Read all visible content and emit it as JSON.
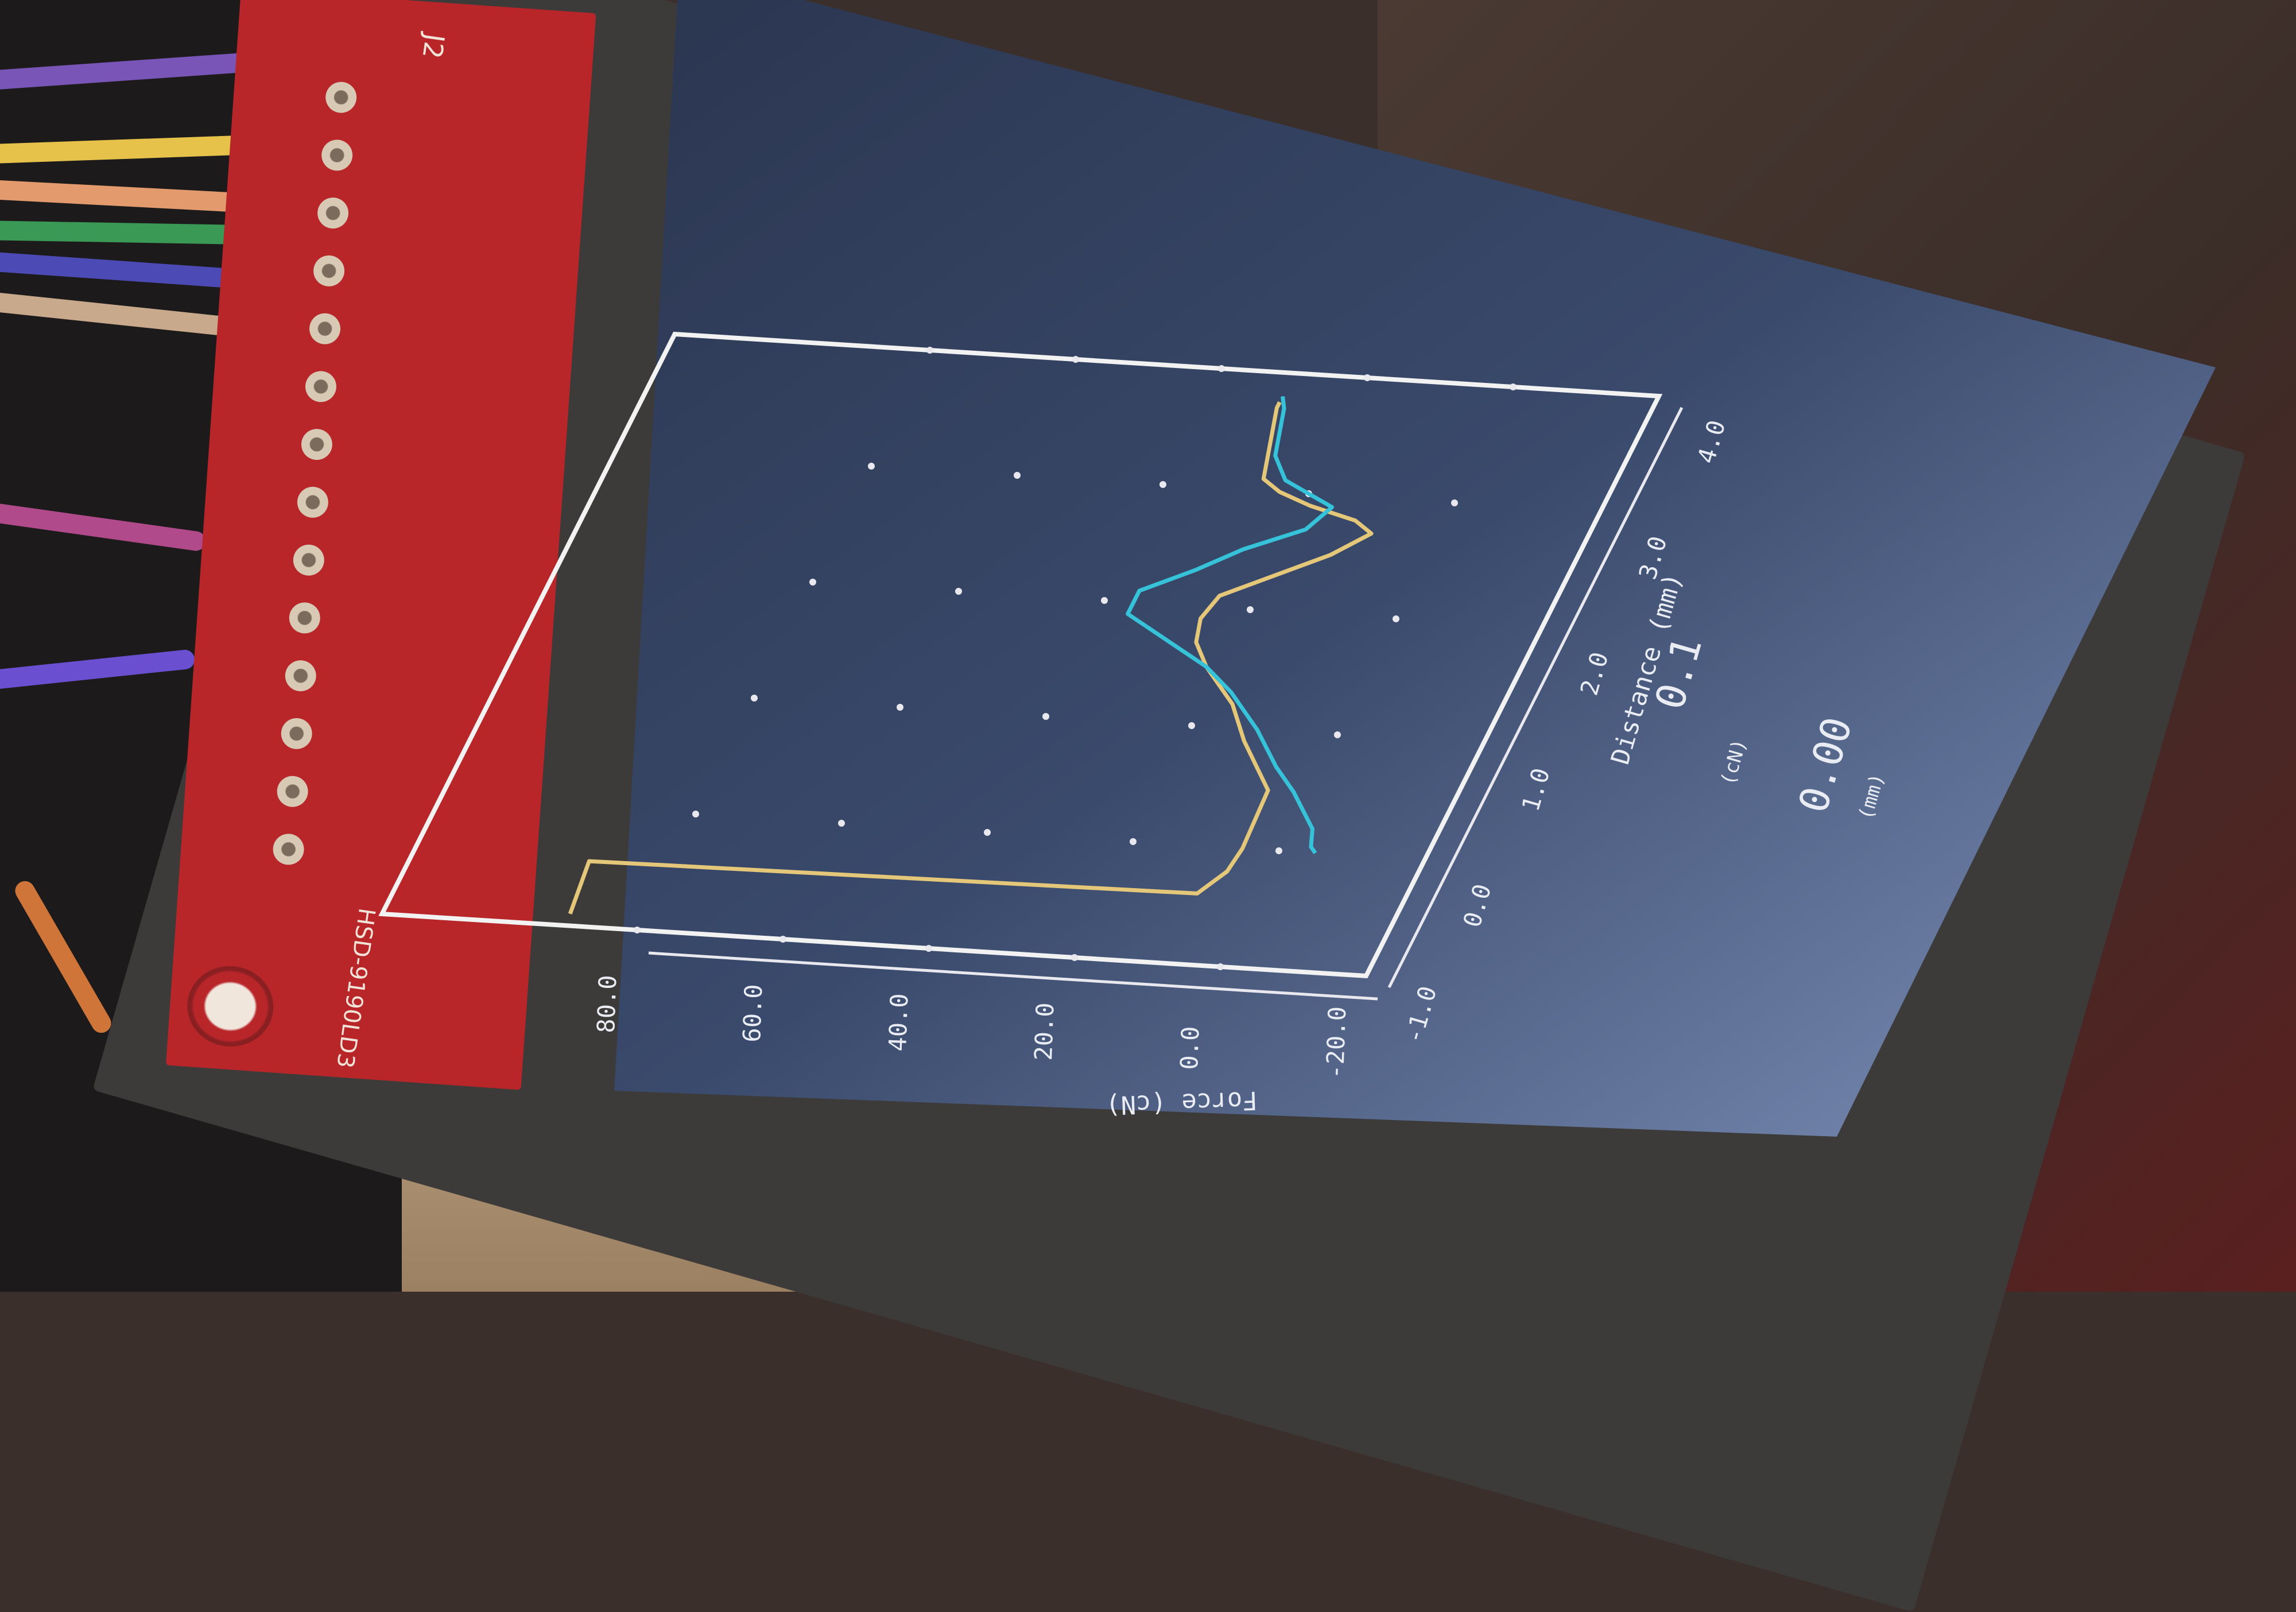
{
  "board": {
    "header_label": "J2",
    "part_number": "HSD-9190LD3"
  },
  "display": {
    "chart_data": {
      "type": "line",
      "xlabel": "Distance (mm)",
      "ylabel": "Force (cN)",
      "x_ticks": [
        "-1.0",
        "0.0",
        "1.0",
        "2.0",
        "3.0",
        "4.0"
      ],
      "y_ticks": [
        "-20.0",
        "0.0",
        "20.0",
        "40.0",
        "60.0",
        "80.0"
      ],
      "xlim": [
        -1.0,
        4.0
      ],
      "ylim": [
        -20.0,
        80.0
      ],
      "grid": "dots",
      "series": [
        {
          "color": "#e4c778",
          "x": [
            -0.9,
            -0.45,
            -0.4,
            -0.2,
            0.0,
            0.5,
            0.9,
            1.2,
            1.5,
            1.7,
            1.9,
            2.1,
            2.3,
            2.5,
            2.7,
            2.8,
            2.9,
            3.0,
            3.1,
            3.3,
            3.5,
            3.7,
            3.75
          ],
          "y": [
            90.0,
            91.0,
            8.0,
            5.5,
            5.0,
            5.5,
            12.0,
            16.0,
            22.0,
            25.0,
            26.0,
            25.0,
            19.0,
            13.0,
            9.0,
            12.0,
            19.0,
            24.0,
            27.0,
            28.0,
            29.0,
            30.0,
            30.0
          ]
        },
        {
          "color": "#36c3d9",
          "x": [
            3.8,
            3.7,
            3.5,
            3.3,
            3.1,
            3.0,
            2.9,
            2.7,
            2.5,
            2.3,
            2.1,
            1.9,
            1.7,
            1.5,
            1.3,
            1.0,
            0.7,
            0.5,
            0.2,
            0.05,
            0.0
          ],
          "y": [
            30.0,
            29.0,
            28.0,
            27.0,
            24.0,
            20.0,
            16.0,
            18.0,
            25.0,
            30.0,
            36.0,
            36.0,
            29.0,
            22.0,
            17.0,
            11.0,
            6.0,
            2.0,
            -3.0,
            -4.0,
            -5.0
          ]
        }
      ]
    },
    "readouts": [
      {
        "value": "0.1",
        "unit": "(cN)"
      },
      {
        "value": "0.00",
        "unit": "(mm)"
      }
    ]
  }
}
